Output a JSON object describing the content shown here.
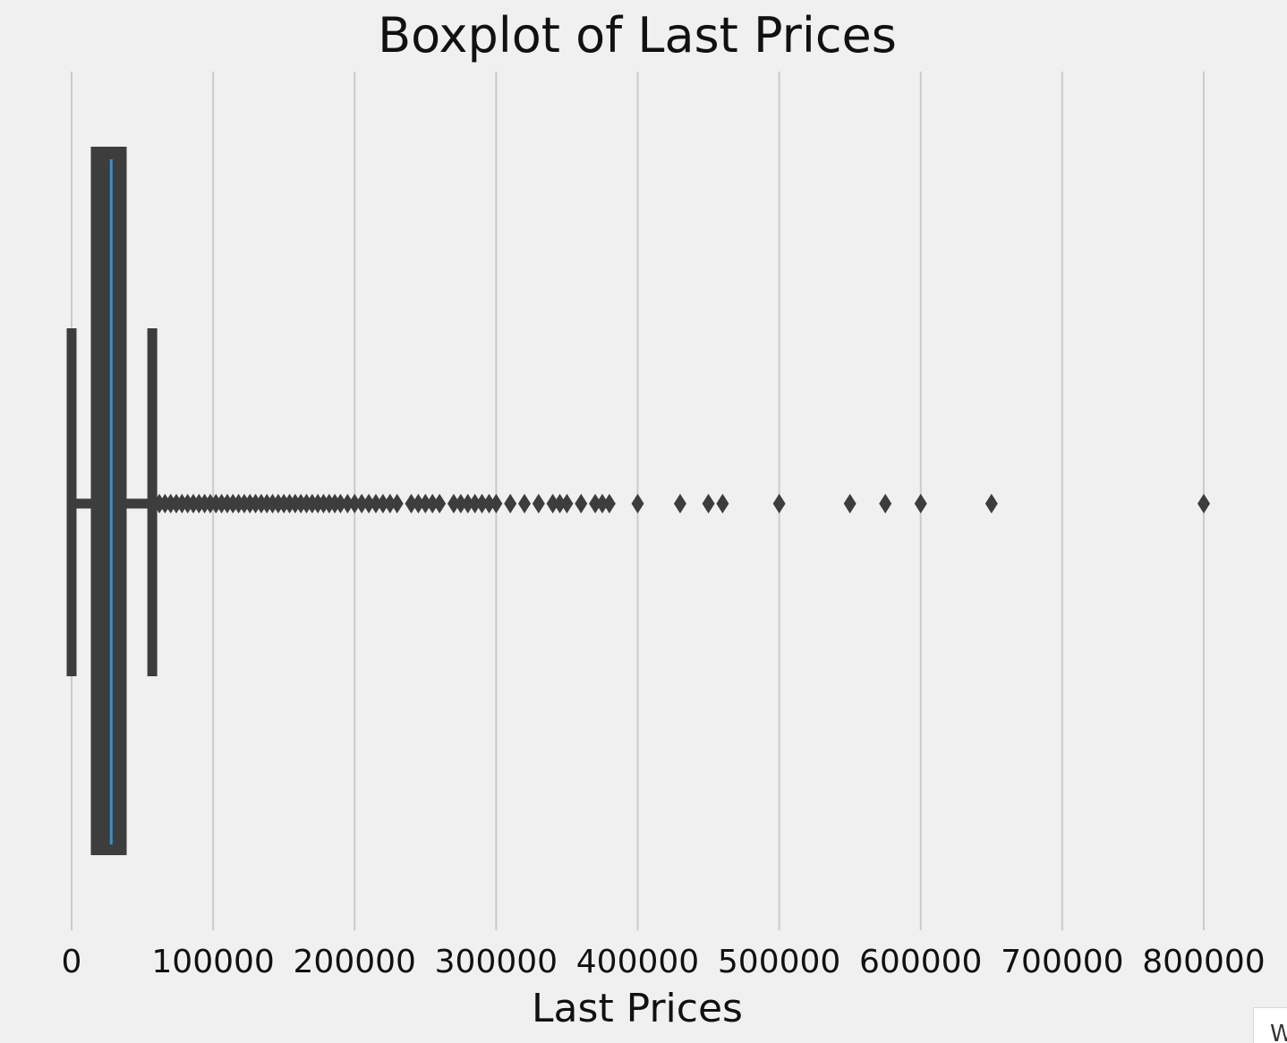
{
  "chart_data": {
    "type": "boxplot",
    "orientation": "horizontal",
    "title": "Boxplot of Last Prices",
    "xlabel": "Last Prices",
    "ylabel": "",
    "xlim": [
      -50000,
      850000
    ],
    "xticks": [
      0,
      100000,
      200000,
      300000,
      400000,
      500000,
      600000,
      700000,
      800000
    ],
    "xtick_labels": [
      "0",
      "100000",
      "200000",
      "300000",
      "400000",
      "500000",
      "600000",
      "700000",
      "800000"
    ],
    "grid": "vertical",
    "colors": {
      "box_edge": "#3d3d3d",
      "box_fill": "#3d3d3d",
      "median": "#3b8fc4",
      "outlier": "#3d3d3d",
      "background": "#f0f0f0",
      "grid": "#cbcbcb"
    },
    "box": {
      "whisker_low": 0,
      "q1": 15500,
      "median": 28000,
      "q3": 37000,
      "whisker_high": 57000
    },
    "outliers": [
      58000,
      62000,
      66000,
      70000,
      74000,
      78000,
      82000,
      86000,
      90000,
      94000,
      98000,
      102000,
      106000,
      110000,
      114000,
      118000,
      122000,
      126000,
      130000,
      134000,
      138000,
      142000,
      146000,
      150000,
      154000,
      158000,
      162000,
      166000,
      170000,
      174000,
      178000,
      182000,
      186000,
      190000,
      195000,
      200000,
      205000,
      210000,
      215000,
      220000,
      225000,
      230000,
      240000,
      245000,
      250000,
      255000,
      260000,
      270000,
      275000,
      280000,
      285000,
      290000,
      295000,
      300000,
      310000,
      320000,
      330000,
      340000,
      345000,
      350000,
      360000,
      370000,
      375000,
      380000,
      400000,
      430000,
      450000,
      460000,
      500000,
      550000,
      575000,
      600000,
      650000,
      800000
    ]
  },
  "corner_popup_text": "W"
}
